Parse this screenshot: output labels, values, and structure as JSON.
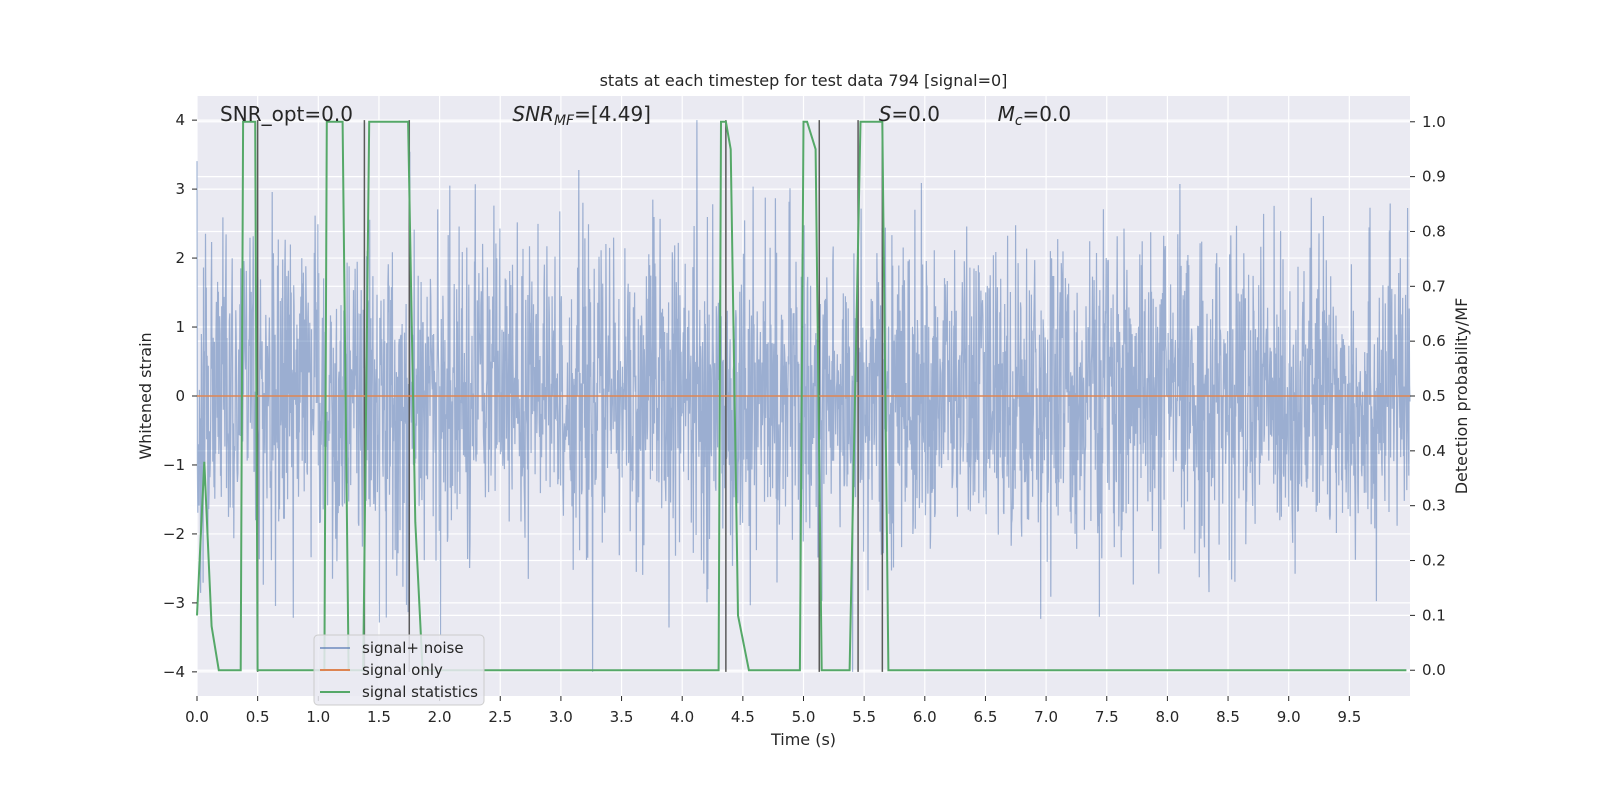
{
  "chart_data": {
    "type": "line",
    "title": "stats at each timestep for test data 794 [signal=0]",
    "xlabel": "Time (s)",
    "ylabel": "Whitened strain",
    "y2label": "Detection probability/MF",
    "xlim": [
      0,
      10
    ],
    "ylim": [
      -4.35,
      4.35
    ],
    "y2lim": [
      -0.047,
      1.047
    ],
    "xticks": [
      0.0,
      0.5,
      1.0,
      1.5,
      2.0,
      2.5,
      3.0,
      3.5,
      4.0,
      4.5,
      5.0,
      5.5,
      6.0,
      6.5,
      7.0,
      7.5,
      8.0,
      8.5,
      9.0,
      9.5
    ],
    "xtick_labels": [
      "0.0",
      "0.5",
      "1.0",
      "1.5",
      "2.0",
      "2.5",
      "3.0",
      "3.5",
      "4.0",
      "4.5",
      "5.0",
      "5.5",
      "6.0",
      "6.5",
      "7.0",
      "7.5",
      "8.0",
      "8.5",
      "9.0",
      "9.5"
    ],
    "yticks": [
      -4,
      -3,
      -2,
      -1,
      0,
      1,
      2,
      3,
      4
    ],
    "ytick_labels": [
      "−4",
      "−3",
      "−2",
      "−1",
      "0",
      "1",
      "2",
      "3",
      "4"
    ],
    "y2ticks": [
      0.0,
      0.1,
      0.2,
      0.3,
      0.4,
      0.5,
      0.6,
      0.7,
      0.8,
      0.9,
      1.0
    ],
    "y2tick_labels": [
      "0.0",
      "0.1",
      "0.2",
      "0.3",
      "0.4",
      "0.5",
      "0.6",
      "0.7",
      "0.8",
      "0.9",
      "1.0"
    ],
    "grid": true,
    "legend_placement": "lower-left",
    "annotations": [
      {
        "prefix": "SNR_opt",
        "sub": "",
        "value": "=0.0",
        "x": 0.19,
        "italic": false
      },
      {
        "prefix": "SNR",
        "sub": "MF",
        "value": "=[4.49]",
        "x": 2.6,
        "italic": true
      },
      {
        "prefix": "S",
        "sub": "",
        "value": "=0.0",
        "x": 5.62,
        "italic": true
      },
      {
        "prefix": "M",
        "sub": "c",
        "value": "=0.0",
        "x": 6.6,
        "italic": true
      }
    ],
    "series": [
      {
        "name": "signal+ noise",
        "color": "#4c72b0",
        "kind": "noise",
        "envelope": {
          "x": [
            0,
            10
          ],
          "typical_abs_max": 2.2,
          "peak_abs_max": 4.0
        }
      },
      {
        "name": "signal only",
        "color": "#dd8452",
        "kind": "line",
        "x": [
          0,
          10
        ],
        "y": [
          0,
          0
        ]
      },
      {
        "name": "signal statistics",
        "color": "#55a868",
        "kind": "line",
        "axis": "right",
        "x": [
          0.0,
          0.06,
          0.12,
          0.18,
          0.36,
          0.38,
          0.4,
          0.44,
          0.48,
          0.5,
          0.55,
          1.05,
          1.07,
          1.1,
          1.15,
          1.2,
          1.25,
          1.37,
          1.42,
          1.46,
          1.74,
          1.8,
          1.86,
          4.3,
          4.32,
          4.36,
          4.4,
          4.46,
          4.55,
          4.97,
          5.0,
          5.03,
          5.1,
          5.15,
          5.38,
          5.47,
          5.55,
          5.65,
          5.7,
          5.75,
          9.97
        ],
        "y": [
          0.1,
          0.38,
          0.08,
          0.0,
          0.0,
          1.0,
          1.0,
          1.0,
          1.0,
          0.0,
          0.0,
          0.0,
          1.0,
          1.0,
          1.0,
          1.0,
          0.0,
          0.0,
          1.0,
          1.0,
          1.0,
          0.27,
          0.0,
          0.0,
          1.0,
          1.0,
          0.95,
          0.1,
          0.0,
          0.0,
          1.0,
          1.0,
          0.95,
          0.0,
          0.0,
          1.0,
          1.0,
          1.0,
          0.0,
          0.0,
          0.0
        ]
      },
      {
        "name": "",
        "color": "#5a5a5a",
        "kind": "vlines",
        "x": [
          0.5,
          1.38,
          1.75,
          4.36,
          5.13,
          5.45,
          5.65
        ]
      }
    ]
  }
}
